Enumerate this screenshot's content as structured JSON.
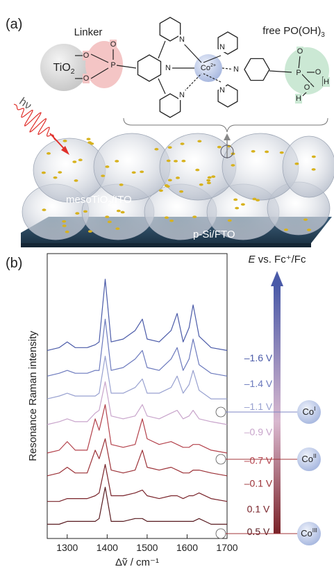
{
  "panel_a": {
    "tag": "(a)",
    "linker": "Linker",
    "free_group": {
      "text": "free PO(OH)",
      "sub": "3"
    },
    "tio2": {
      "text": "TiO",
      "sub": "2"
    },
    "light": "hν",
    "meso": {
      "text": "mesoTiO",
      "sub": "2",
      "rest": "/ITO"
    },
    "substrate": "p-Si/FTO",
    "cobalt": {
      "text": "Co",
      "sup": "2+"
    },
    "atoms": [
      "O",
      "O",
      "P",
      "O",
      "N",
      "N",
      "N",
      "N",
      "N",
      "N",
      "P",
      "O",
      "O",
      "H",
      "O",
      "H"
    ]
  },
  "chart_data": {
    "type": "line",
    "tag": "(b)",
    "x_label": "Δṽ / cm⁻¹",
    "y_label": "Resonance Raman intensity",
    "xlim": [
      1250,
      1700
    ],
    "xticks": [
      1300,
      1400,
      1500,
      1600,
      1700
    ],
    "ylim": [
      0,
      100
    ],
    "x": [
      1250,
      1280,
      1300,
      1320,
      1350,
      1370,
      1380,
      1395,
      1410,
      1440,
      1470,
      1488,
      1500,
      1530,
      1560,
      1575,
      1590,
      1605,
      1615,
      1630,
      1660,
      1700
    ],
    "series": [
      {
        "name": "–1.6 V",
        "color": "#4a5aa8",
        "values": [
          66,
          67,
          69,
          67,
          67,
          68,
          69,
          91,
          69,
          70,
          73,
          77,
          70,
          69,
          73,
          79,
          69,
          74,
          82,
          71,
          67,
          66
        ]
      },
      {
        "name": "–1.4 V",
        "color": "#6b79bd",
        "values": [
          57,
          58,
          59,
          58,
          58,
          59,
          59,
          77,
          59,
          60,
          63,
          66,
          60,
          59,
          63,
          67,
          59,
          63,
          70,
          61,
          58,
          57
        ]
      },
      {
        "name": "–1.1 V",
        "color": "#98a1d0",
        "values": [
          49,
          50,
          51,
          50,
          50,
          50,
          51,
          64,
          51,
          51,
          53,
          56,
          51,
          51,
          53,
          57,
          51,
          54,
          59,
          52,
          49,
          49
        ]
      },
      {
        "name": "–0.9 V",
        "color": "#c8a4cb",
        "values": [
          40,
          41,
          42,
          41,
          41,
          44,
          45,
          55,
          43,
          42,
          43,
          47,
          43,
          42,
          44,
          45,
          42,
          43,
          45,
          42,
          41,
          40
        ]
      },
      {
        "name": "–0.7 V",
        "color": "#b3414b",
        "values": [
          30,
          31,
          34,
          31,
          31,
          42,
          38,
          47,
          33,
          32,
          33,
          42,
          35,
          33,
          34,
          33,
          32,
          32,
          33,
          33,
          31,
          30
        ]
      },
      {
        "name": "–0.1 V",
        "color": "#9b3036",
        "values": [
          22,
          23,
          25,
          23,
          23,
          31,
          28,
          35,
          24,
          23,
          24,
          31,
          25,
          24,
          25,
          24,
          23,
          23,
          24,
          24,
          23,
          22
        ]
      },
      {
        "name": "0.1 V",
        "color": "#782229",
        "values": [
          13,
          13,
          14,
          14,
          14,
          15,
          16,
          26,
          15,
          15,
          16,
          17,
          15,
          14,
          15,
          15,
          14,
          15,
          15,
          16,
          14,
          13
        ]
      },
      {
        "name": "0.5 V",
        "color": "#571a1f",
        "values": [
          5,
          5,
          6,
          6,
          6,
          6,
          7,
          18,
          6,
          6,
          7,
          7,
          6,
          6,
          6,
          6,
          6,
          6,
          6,
          7,
          5,
          5
        ]
      }
    ],
    "e_axis": {
      "symbol": "E",
      "text": " vs. Fc⁺/Fc"
    },
    "co_labels": [
      {
        "text": "Co",
        "sup": "I"
      },
      {
        "text": "Co",
        "sup": "II"
      },
      {
        "text": "Co",
        "sup": "III"
      }
    ]
  }
}
